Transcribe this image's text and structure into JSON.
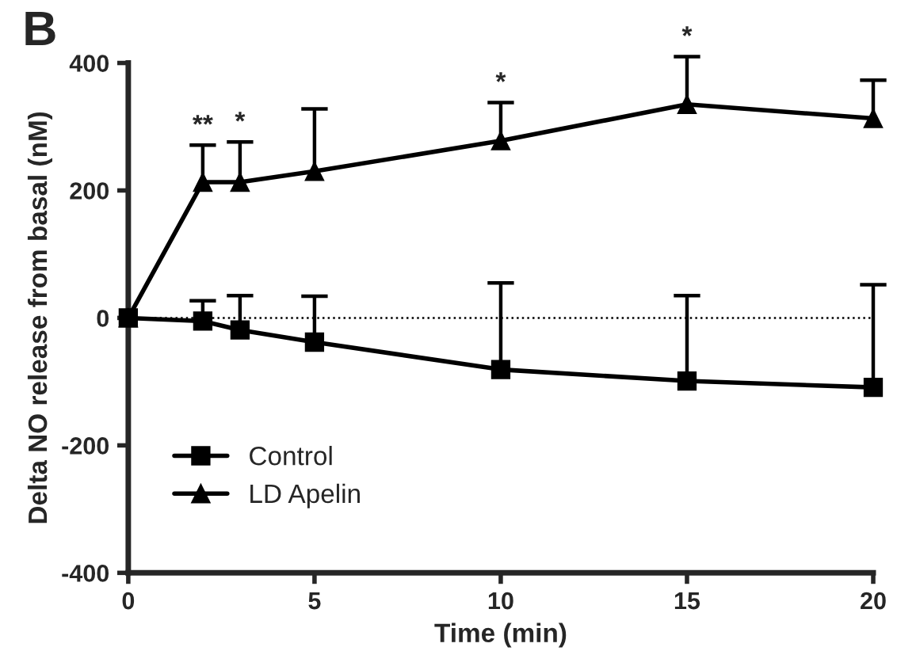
{
  "chart_data": {
    "type": "line",
    "xlabel": "Time (min)",
    "ylabel": "Delta NO release from basal (nM)",
    "x": [
      0,
      2,
      3,
      5,
      10,
      15,
      20
    ],
    "series": [
      {
        "name": "Control",
        "color": "#000000",
        "marker": "square",
        "values": [
          0,
          -5,
          -19,
          -38,
          -81,
          -99,
          -109
        ],
        "errors": [
          null,
          [
            -5,
            27
          ],
          [
            -19,
            35
          ],
          [
            -38,
            34
          ],
          [
            -81,
            55
          ],
          [
            -99,
            35
          ],
          [
            -109,
            52
          ]
        ]
      },
      {
        "name": "LD Apelin",
        "color": "#000000",
        "marker": "triangle",
        "values": [
          0,
          213,
          213,
          230,
          278,
          335,
          313
        ],
        "errors": [
          null,
          [
            213,
            271
          ],
          [
            213,
            276
          ],
          [
            230,
            328
          ],
          [
            278,
            338
          ],
          [
            335,
            410
          ],
          [
            313,
            373
          ]
        ]
      }
    ],
    "xlim": [
      0,
      20
    ],
    "xticks": [
      0,
      5,
      10,
      15,
      20
    ],
    "ylim": [
      -400,
      400
    ],
    "yticks": [
      -400,
      -200,
      0,
      200,
      400
    ],
    "ref_lines": [
      {
        "axis": "y",
        "value": 0,
        "line_style": "dotted",
        "color": "#000000"
      }
    ],
    "annotations": [
      "B",
      {
        "text": "**",
        "x": 2,
        "y": 271
      },
      {
        "text": "*",
        "x": 3,
        "y": 276
      },
      {
        "text": "*",
        "x": 10,
        "y": 338
      },
      {
        "text": "*",
        "x": 15,
        "y": 410
      }
    ],
    "legend": "bottom left",
    "grid": false,
    "line_style": "solid"
  }
}
